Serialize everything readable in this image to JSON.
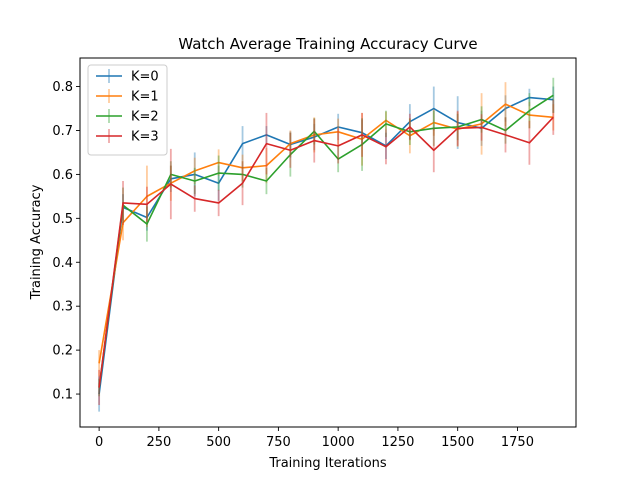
{
  "chart_data": {
    "type": "line",
    "title": "Watch Average Training Accuracy Curve",
    "xlabel": "Training Iterations",
    "ylabel": "Training Accuracy",
    "xlim": [
      -80,
      1995
    ],
    "ylim": [
      0.025,
      0.865
    ],
    "xticks": [
      0,
      250,
      500,
      750,
      1000,
      1250,
      1500,
      1750
    ],
    "xtick_labels": [
      "0",
      "250",
      "500",
      "750",
      "1000",
      "1250",
      "1500",
      "1750"
    ],
    "yticks": [
      0.1,
      0.2,
      0.3,
      0.4,
      0.5,
      0.6,
      0.7,
      0.8
    ],
    "ytick_labels": [
      "0.1",
      "0.2",
      "0.3",
      "0.4",
      "0.5",
      "0.6",
      "0.7",
      "0.8"
    ],
    "grid": false,
    "legend_position": "top-left",
    "x": [
      0,
      100,
      200,
      300,
      400,
      500,
      600,
      700,
      800,
      900,
      1000,
      1100,
      1200,
      1300,
      1400,
      1500,
      1600,
      1700,
      1800,
      1900
    ],
    "series": [
      {
        "name": "K=0",
        "color": "#1f77b4",
        "values": [
          0.1,
          0.525,
          0.502,
          0.59,
          0.6,
          0.58,
          0.67,
          0.69,
          0.668,
          0.685,
          0.708,
          0.695,
          0.665,
          0.72,
          0.75,
          0.718,
          0.705,
          0.75,
          0.775,
          0.77
        ],
        "errors": [
          0.04,
          0.03,
          0.03,
          0.03,
          0.05,
          0.04,
          0.04,
          0.02,
          0.03,
          0.03,
          0.03,
          0.03,
          0.03,
          0.04,
          0.05,
          0.06,
          0.04,
          0.03,
          0.02,
          0.03
        ]
      },
      {
        "name": "K=1",
        "color": "#ff7f0e",
        "values": [
          0.17,
          0.49,
          0.55,
          0.58,
          0.608,
          0.627,
          0.615,
          0.62,
          0.67,
          0.69,
          0.697,
          0.68,
          0.723,
          0.688,
          0.718,
          0.703,
          0.715,
          0.76,
          0.735,
          0.73
        ],
        "errors": [
          0.03,
          0.04,
          0.07,
          0.04,
          0.03,
          0.03,
          0.03,
          0.04,
          0.03,
          0.04,
          0.03,
          0.06,
          0.02,
          0.04,
          0.03,
          0.04,
          0.07,
          0.05,
          0.03,
          0.03
        ]
      },
      {
        "name": "K=2",
        "color": "#2ca02c",
        "values": [
          0.115,
          0.53,
          0.487,
          0.6,
          0.585,
          0.603,
          0.6,
          0.585,
          0.645,
          0.698,
          0.635,
          0.668,
          0.715,
          0.697,
          0.705,
          0.708,
          0.725,
          0.7,
          0.745,
          0.78
        ],
        "errors": [
          0.02,
          0.04,
          0.04,
          0.03,
          0.03,
          0.04,
          0.03,
          0.03,
          0.05,
          0.03,
          0.03,
          0.06,
          0.03,
          0.03,
          0.04,
          0.03,
          0.03,
          0.03,
          0.04,
          0.04
        ]
      },
      {
        "name": "K=3",
        "color": "#d62728",
        "values": [
          0.115,
          0.535,
          0.532,
          0.578,
          0.545,
          0.535,
          0.58,
          0.67,
          0.655,
          0.677,
          0.665,
          0.69,
          0.663,
          0.708,
          0.655,
          0.705,
          0.707,
          0.69,
          0.672,
          0.73
        ],
        "errors": [
          0.04,
          0.05,
          0.04,
          0.08,
          0.03,
          0.03,
          0.05,
          0.07,
          0.04,
          0.05,
          0.04,
          0.05,
          0.04,
          0.03,
          0.05,
          0.04,
          0.03,
          0.04,
          0.05,
          0.04
        ]
      }
    ]
  }
}
